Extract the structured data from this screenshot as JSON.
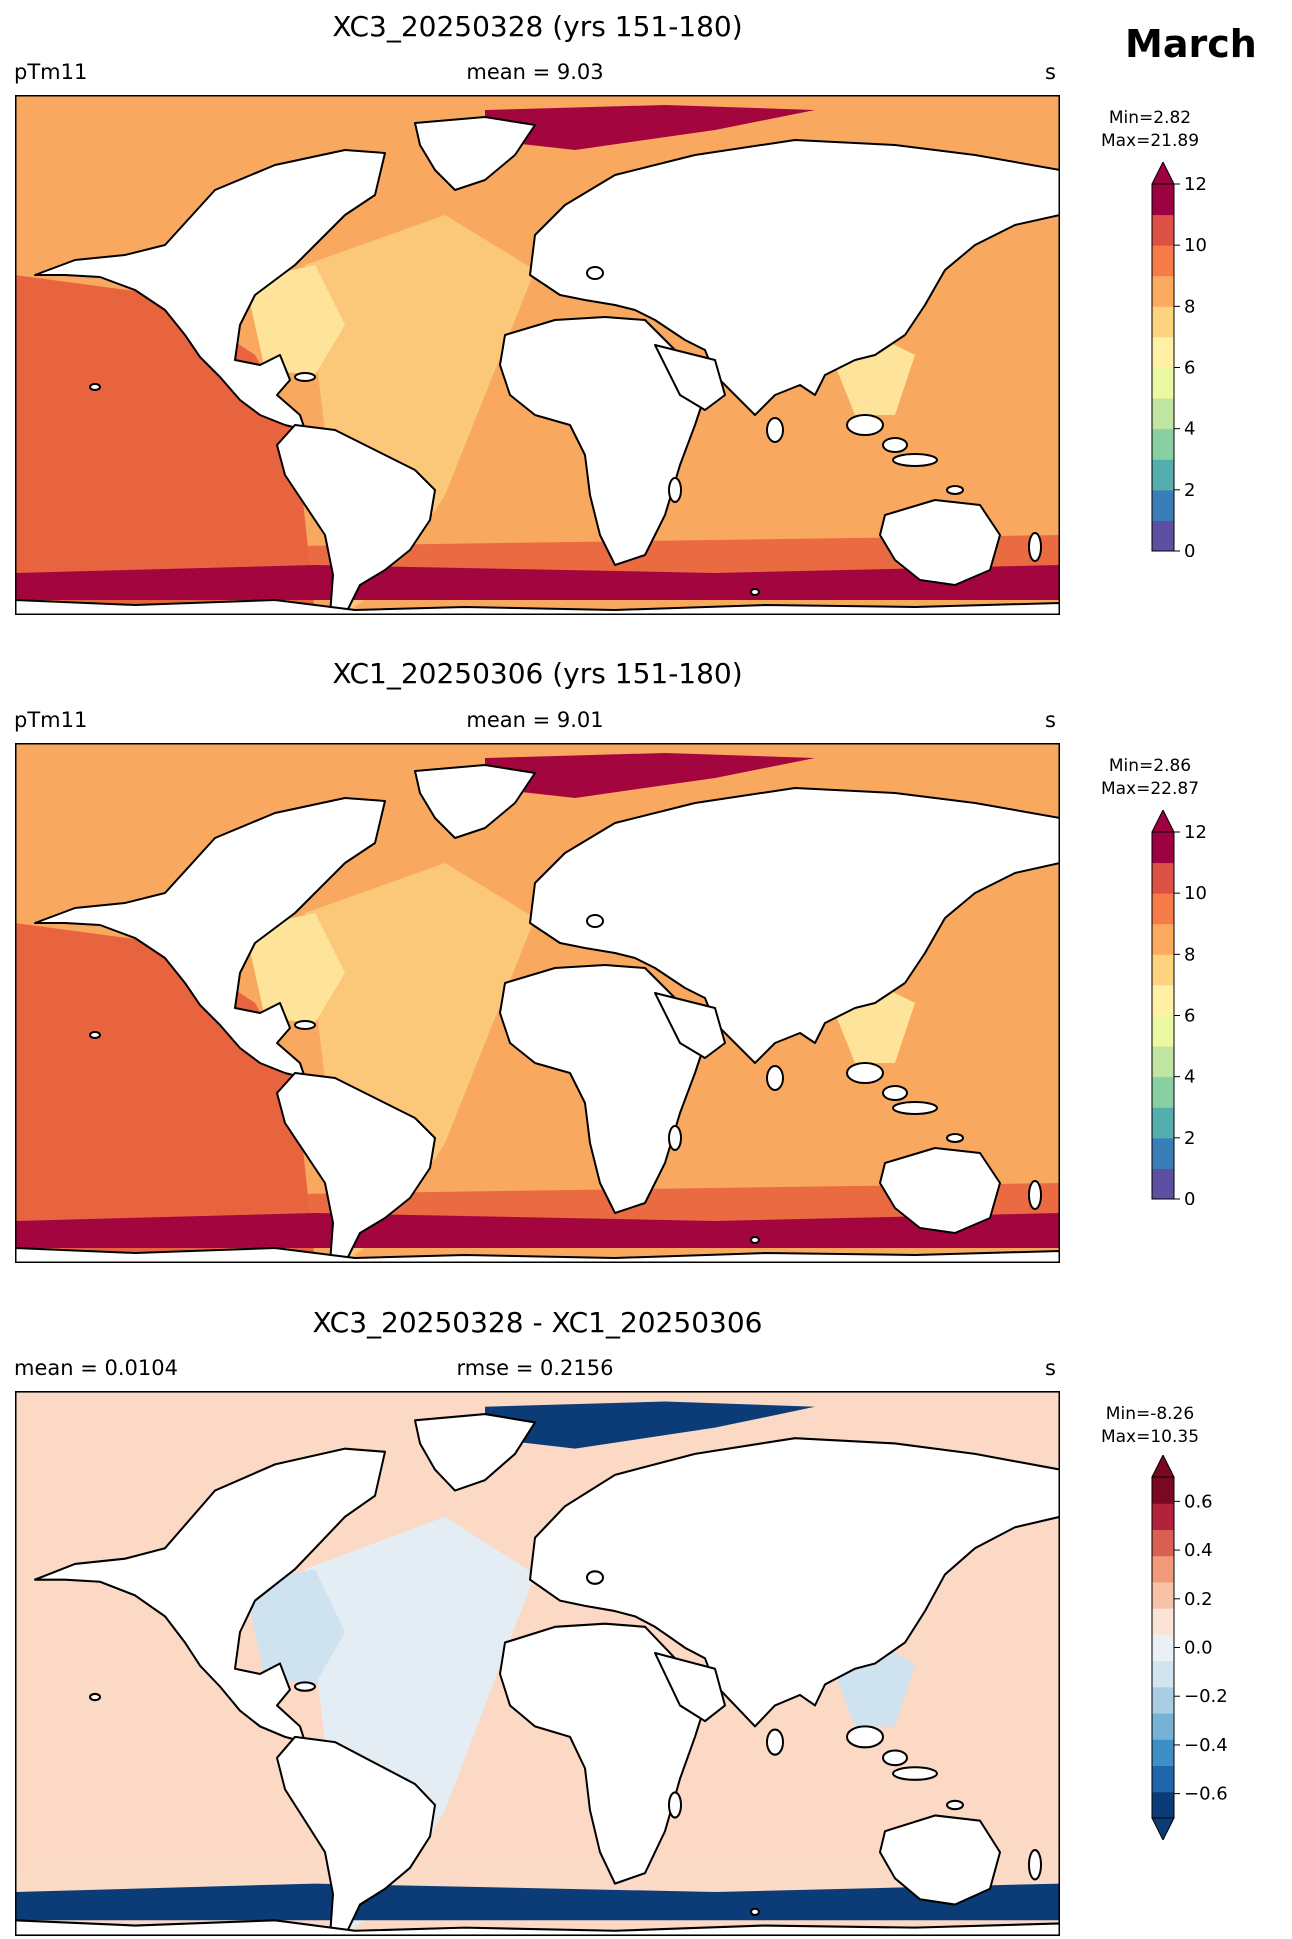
{
  "month": "March",
  "panels": [
    {
      "title": "XC3_20250328 (yrs 151-180)",
      "left_label": "pTm11",
      "center_label": "mean = 9.03",
      "right_label": "s",
      "min_text": "Min=2.82",
      "max_text": "Max=21.89",
      "colorbar": {
        "ticks": [
          "12",
          "10",
          "8",
          "6",
          "4",
          "2",
          "0"
        ],
        "range": [
          0,
          12
        ],
        "extend": "max",
        "colors": [
          "#5e4fa2",
          "#3a7eb8",
          "#54aead",
          "#88cfa4",
          "#bfe5a0",
          "#ecf7a2",
          "#fff0a6",
          "#fdd380",
          "#fcaa5f",
          "#f67d4a",
          "#dd5045",
          "#9e0142"
        ]
      },
      "field": {
        "base": "#f9a85f",
        "pacific": "#e8643f",
        "atlantic": "#fbc87a",
        "nearshore": "#fde49a",
        "inland_sea": "#b6e0a0",
        "polar": "#a3063f"
      }
    },
    {
      "title": "XC1_20250306 (yrs 151-180)",
      "left_label": "pTm11",
      "center_label": "mean = 9.01",
      "right_label": "s",
      "min_text": "Min=2.86",
      "max_text": "Max=22.87",
      "colorbar": {
        "ticks": [
          "12",
          "10",
          "8",
          "6",
          "4",
          "2",
          "0"
        ],
        "range": [
          0,
          12
        ],
        "extend": "max",
        "colors": [
          "#5e4fa2",
          "#3a7eb8",
          "#54aead",
          "#88cfa4",
          "#bfe5a0",
          "#ecf7a2",
          "#fff0a6",
          "#fdd380",
          "#fcaa5f",
          "#f67d4a",
          "#dd5045",
          "#9e0142"
        ]
      },
      "field": {
        "base": "#f9a85f",
        "pacific": "#e8643f",
        "atlantic": "#fbc87a",
        "nearshore": "#fde49a",
        "inland_sea": "#b6e0a0",
        "polar": "#a3063f"
      }
    },
    {
      "title": "XC3_20250328 - XC1_20250306",
      "left_label": "mean = 0.0104",
      "center_label": "rmse = 0.2156",
      "right_label": "s",
      "min_text": "Min=-8.26",
      "max_text": "Max=10.35",
      "colorbar": {
        "ticks": [
          "0.6",
          "0.4",
          "0.2",
          "0.0",
          "−0.2",
          "−0.4",
          "−0.6"
        ],
        "range": [
          -0.7,
          0.7
        ],
        "extend": "both",
        "colors": [
          "#0b3c78",
          "#1f65a9",
          "#3f8fc4",
          "#76b1d6",
          "#a9cee4",
          "#d2e4ef",
          "#eaf0f4",
          "#fbe4d7",
          "#f8c2a6",
          "#f09a7a",
          "#d85f52",
          "#b2223a",
          "#7a0822"
        ]
      },
      "field": {
        "base": "#fbd9c5",
        "pacific": "#fbd9c5",
        "atlantic": "#e3edf3",
        "nearshore": "#cfe2ef",
        "inland_sea": "#f3b79a",
        "polar": "#0b3c78"
      }
    }
  ]
}
